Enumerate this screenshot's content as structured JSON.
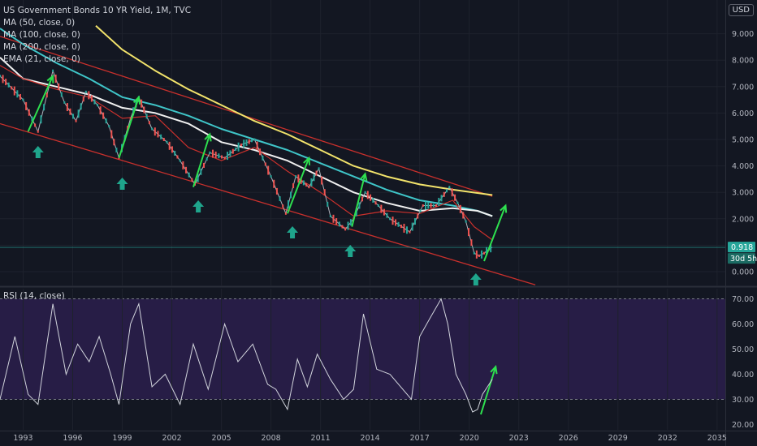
{
  "header": {
    "title": "US Government Bonds 10 YR Yield, 1M, TVC",
    "currency": "USD",
    "indicators": [
      "MA (50, close, 0)",
      "MA (100, close, 0)",
      "MA (200, close, 0)",
      "EMA (21, close, 0)"
    ]
  },
  "price_panel": {
    "last_value_label": "0.918",
    "countdown_label": "30d 5h"
  },
  "rsi_panel": {
    "label": "RSI (14, close)"
  },
  "chart_data": [
    {
      "type": "line",
      "x_ticks": [
        "1993",
        "1996",
        "1999",
        "2002",
        "2005",
        "2008",
        "2011",
        "2014",
        "2017",
        "2020",
        "2023",
        "2026",
        "2029",
        "2032",
        "2035"
      ],
      "y_ticks": [
        "0.000",
        "1.000",
        "2.000",
        "3.000",
        "4.000",
        "5.000",
        "6.000",
        "7.000",
        "8.000",
        "9.000"
      ],
      "ylim": [
        -0.5,
        9.7
      ],
      "xlim": [
        1991.6,
        2035.5
      ],
      "series": [
        {
          "x": [
            1991.6,
            1993.0,
            1993.9,
            1994.8,
            1995.5,
            1996.2,
            1996.8,
            1997.5,
            1998.2,
            1998.8,
            1999.5,
            2000.0,
            2000.8,
            2001.7,
            2002.5,
            2003.4,
            2004.3,
            2005.2,
            2006.2,
            2007.0,
            2008.0,
            2008.9,
            2009.5,
            2010.3,
            2010.9,
            2011.6,
            2012.5,
            2013.0,
            2013.7,
            2014.5,
            2015.2,
            2016.4,
            2017.2,
            2018.0,
            2018.8,
            2019.3,
            2019.8,
            2020.3,
            2020.6,
            2020.9,
            2021.2,
            2021.4
          ],
          "y": [
            7.4,
            6.5,
            5.3,
            7.6,
            6.4,
            5.7,
            6.8,
            6.3,
            5.5,
            4.3,
            5.8,
            6.6,
            5.4,
            4.9,
            4.2,
            3.3,
            4.5,
            4.3,
            4.8,
            5.0,
            3.6,
            2.2,
            3.6,
            3.2,
            3.9,
            2.1,
            1.6,
            2.0,
            3.0,
            2.5,
            2.0,
            1.5,
            2.5,
            2.5,
            3.2,
            2.6,
            1.9,
            0.7,
            0.6,
            0.7,
            0.85,
            0.92
          ]
        },
        {
          "x": [
            1991.6,
            1993,
            1995,
            1997,
            1999,
            2001,
            2003,
            2005,
            2007,
            2009,
            2011,
            2013,
            2015,
            2017,
            2019,
            2020.3,
            2021.4
          ],
          "y": [
            7.8,
            7.3,
            6.9,
            6.6,
            5.8,
            5.9,
            4.7,
            4.2,
            4.7,
            3.8,
            3.0,
            2.1,
            2.3,
            2.2,
            2.7,
            1.7,
            1.2
          ]
        },
        {
          "x": [
            1991.6,
            1993,
            1995,
            1997,
            1999,
            2001,
            2003,
            2005,
            2007,
            2009,
            2011,
            2013,
            2015,
            2017,
            2019,
            2020.5,
            2021.4
          ],
          "y": [
            8.1,
            7.3,
            7.0,
            6.7,
            6.2,
            6.0,
            5.6,
            4.9,
            4.6,
            4.2,
            3.6,
            3.0,
            2.6,
            2.3,
            2.4,
            2.3,
            2.1
          ]
        },
        {
          "x": [
            1991.6,
            1993,
            1995,
            1997,
            1999,
            2001,
            2003,
            2005,
            2007,
            2009,
            2011,
            2013,
            2015,
            2017,
            2019,
            2020.5,
            2021.4
          ],
          "y": [
            9.2,
            8.6,
            7.9,
            7.3,
            6.6,
            6.3,
            5.9,
            5.4,
            5.0,
            4.6,
            4.1,
            3.6,
            3.1,
            2.7,
            2.5,
            2.3,
            2.1
          ]
        },
        {
          "x": [
            1997.4,
            1999,
            2001,
            2003,
            2005,
            2007,
            2009,
            2011,
            2013,
            2015,
            2017,
            2019,
            2021.4
          ],
          "y": [
            9.3,
            8.4,
            7.6,
            6.9,
            6.3,
            5.7,
            5.2,
            4.6,
            4.0,
            3.6,
            3.3,
            3.1,
            2.9
          ]
        }
      ]
    },
    {
      "type": "line",
      "y_ticks": [
        "20.00",
        "30.00",
        "40.00",
        "50.00",
        "60.00",
        "70.00"
      ],
      "ylim": [
        20,
        72
      ],
      "xlim": [
        1991.6,
        2035.5
      ],
      "series": [
        {
          "x": [
            1991.6,
            1992.5,
            1993.3,
            1993.9,
            1994.8,
            1995.6,
            1996.3,
            1997.0,
            1997.6,
            1998.3,
            1998.8,
            1999.5,
            2000.0,
            2000.8,
            2001.6,
            2002.5,
            2003.3,
            2004.2,
            2005.2,
            2006.0,
            2006.9,
            2007.8,
            2008.3,
            2009.0,
            2009.6,
            2010.2,
            2010.8,
            2011.6,
            2012.4,
            2013.0,
            2013.6,
            2014.4,
            2015.2,
            2016.5,
            2017.0,
            2017.6,
            2018.3,
            2018.7,
            2019.2,
            2019.8,
            2020.2,
            2020.5,
            2020.8,
            2021.1,
            2021.4
          ],
          "y": [
            30,
            55,
            32,
            28,
            68,
            40,
            52,
            45,
            55,
            40,
            28,
            60,
            68,
            35,
            40,
            28,
            52,
            34,
            60,
            45,
            52,
            36,
            34,
            26,
            46,
            35,
            48,
            38,
            30,
            34,
            64,
            42,
            40,
            30,
            55,
            62,
            70,
            60,
            40,
            32,
            25,
            26,
            32,
            35,
            38
          ]
        }
      ]
    }
  ]
}
